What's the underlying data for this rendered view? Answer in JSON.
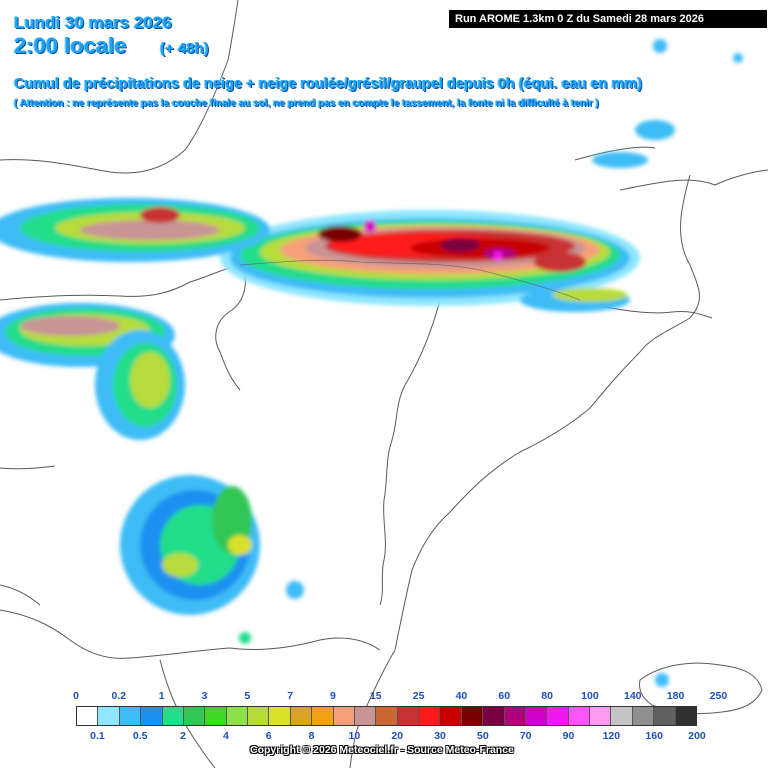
{
  "header": {
    "date": "Lundi 30 mars 2026",
    "time": "2:00 locale",
    "lead": "(+ 48h)",
    "run": "Run AROME 1.3km 0 Z du Samedi 28 mars 2026",
    "title": "Cumul de précipitations de neige + neige roulée/grésil/graupel depuis 0h (équi. eau en mm)",
    "note": "( Attention : ne représente pas la couche finale au sol, ne prend pas en compte le tassement, la fonte ni la difficulté à tenir )"
  },
  "legend": {
    "top_labels": [
      "0",
      "0.2",
      "1",
      "3",
      "5",
      "7",
      "9",
      "15",
      "25",
      "40",
      "60",
      "80",
      "100",
      "140",
      "180",
      "250"
    ],
    "bottom_labels": [
      "0.1",
      "0.5",
      "2",
      "4",
      "6",
      "8",
      "10",
      "20",
      "30",
      "50",
      "70",
      "90",
      "120",
      "160",
      "200"
    ],
    "colors": [
      "#ffffff",
      "#8fe6ff",
      "#3ebcf5",
      "#1a90f0",
      "#22dd8a",
      "#33c655",
      "#3fd626",
      "#8de04a",
      "#b7dc3a",
      "#d9e02a",
      "#d9a421",
      "#f4a014",
      "#f6a07a",
      "#c99494",
      "#cc6633",
      "#c83232",
      "#ff1a1a",
      "#c80000",
      "#7a0000",
      "#7a0040",
      "#b0007a",
      "#d100c8",
      "#f018f0",
      "#ff55ff",
      "#ff9af0",
      "#c4c4c4",
      "#8f8f8f",
      "#606060",
      "#303030"
    ]
  },
  "footer": {
    "copyright": "Copyright © 2026 Meteociel.fr - Source Meteo-France"
  }
}
